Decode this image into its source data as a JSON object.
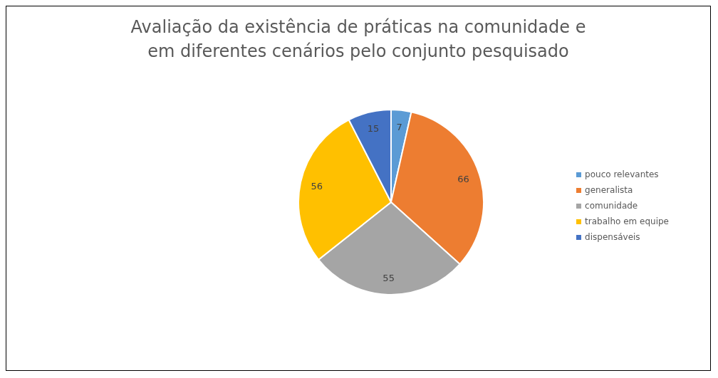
{
  "chart_data": {
    "type": "pie",
    "title": "Avaliação da existência de práticas na comunidade e em diferentes cenários pelo conjunto pesquisado",
    "categories": [
      "pouco relevantes",
      "generalista",
      "comunidade",
      "trabalho em equipe",
      "dispensáveis"
    ],
    "values": [
      7,
      66,
      55,
      56,
      15
    ],
    "colors": [
      "#5b9bd5",
      "#ed7d31",
      "#a5a5a5",
      "#ffc000",
      "#4472c4"
    ],
    "data_labels": true,
    "legend": "right"
  }
}
